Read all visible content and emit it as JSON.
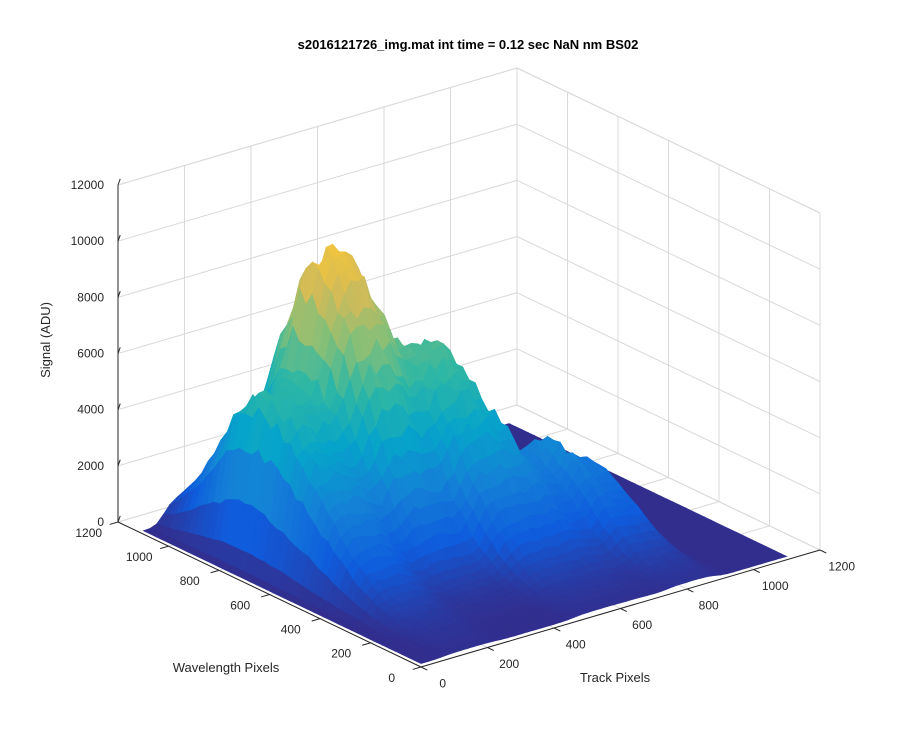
{
  "chart_data": {
    "type": "surface",
    "title": "s2016121726_img.mat int time = 0.12 sec  NaN nm BS02",
    "xlabel": "Track Pixels",
    "ylabel": "Wavelength Pixels",
    "zlabel": "Signal (ADU)",
    "xlim": [
      0,
      1200
    ],
    "ylim": [
      0,
      1200
    ],
    "zlim": [
      0,
      12000
    ],
    "xticks": [
      "0",
      "200",
      "400",
      "600",
      "800",
      "1000",
      "1200"
    ],
    "yticks": [
      "0",
      "200",
      "400",
      "600",
      "800",
      "1000",
      "1200"
    ],
    "zticks": [
      "0",
      "2000",
      "4000",
      "6000",
      "8000",
      "10000",
      "12000"
    ],
    "grid": true,
    "colormap": "parula",
    "colors": [
      "#352a87",
      "#0f5cdd",
      "#1481d6",
      "#06a4ca",
      "#2eb7a4",
      "#87bf77",
      "#d1bb59",
      "#fec832",
      "#f9fb0e"
    ],
    "x_extent_data": [
      0,
      1100
    ],
    "y_extent_data": [
      0,
      1100
    ],
    "ridges": [
      {
        "track_center": 150,
        "track_width": 110,
        "peak": 6000,
        "wl_center": 780,
        "wl_width": 300
      },
      {
        "track_center": 350,
        "track_width": 140,
        "peak": 10300,
        "wl_center": 820,
        "wl_width": 260
      },
      {
        "track_center": 550,
        "track_width": 120,
        "peak": 6700,
        "wl_center": 700,
        "wl_width": 280
      },
      {
        "track_center": 700,
        "track_width": 90,
        "peak": 2800,
        "wl_center": 520,
        "wl_width": 220
      },
      {
        "track_center": 820,
        "track_width": 90,
        "peak": 2600,
        "wl_center": 460,
        "wl_width": 220
      }
    ]
  }
}
